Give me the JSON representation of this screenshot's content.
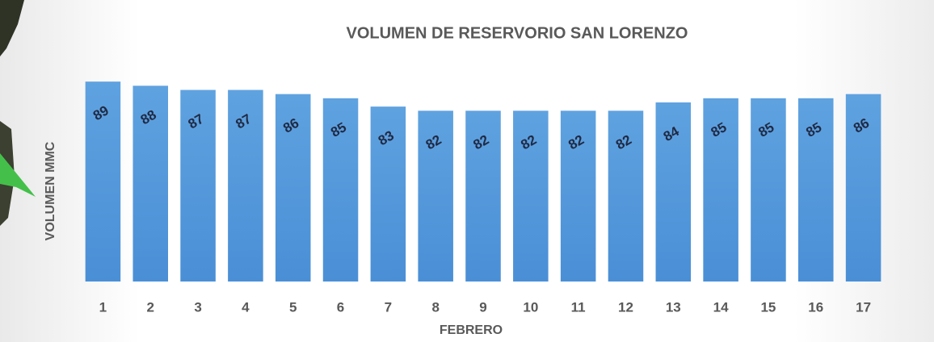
{
  "chart_data": {
    "type": "bar",
    "title": "VOLUMEN DE RESERVORIO SAN LORENZO",
    "x_label": "FEBRERO",
    "y_label": "VOLUMEN MMC",
    "categories": [
      "1",
      "2",
      "3",
      "4",
      "5",
      "6",
      "7",
      "8",
      "9",
      "10",
      "11",
      "12",
      "13",
      "14",
      "15",
      "16",
      "17"
    ],
    "values": [
      89,
      88,
      87,
      87,
      86,
      85,
      83,
      82,
      82,
      82,
      82,
      82,
      84,
      85,
      85,
      85,
      86
    ],
    "color": "#4a8fd6",
    "ylim": [
      41,
      90
    ]
  }
}
